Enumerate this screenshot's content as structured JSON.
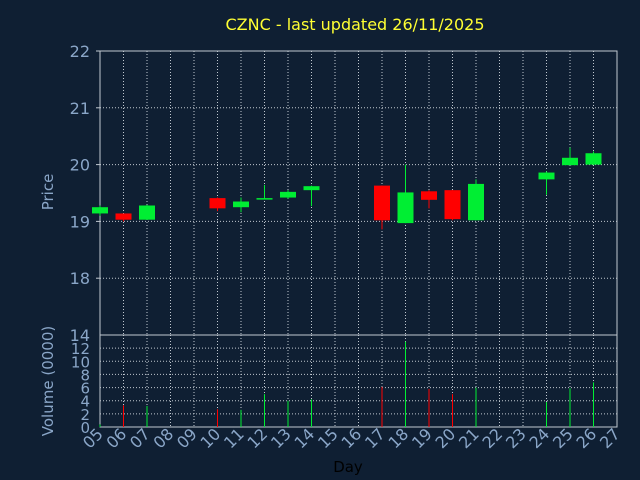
{
  "chart_data": [
    {
      "type": "candlestick",
      "title": "CZNC - last updated 26/11/2025",
      "ylabel": "Price",
      "ylim": [
        17,
        22
      ],
      "yticks": [
        "22",
        "21",
        "20",
        "19",
        "18"
      ],
      "grid": true,
      "x": [
        "05",
        "06",
        "07",
        "10",
        "11",
        "12",
        "13",
        "14",
        "17",
        "18",
        "19",
        "20",
        "21",
        "24",
        "25",
        "26"
      ],
      "open": [
        19.14,
        19.14,
        19.03,
        19.41,
        19.25,
        19.39,
        19.42,
        19.55,
        19.63,
        18.97,
        19.53,
        19.55,
        19.02,
        19.74,
        19.99,
        20.0
      ],
      "high": [
        19.28,
        19.14,
        19.29,
        19.42,
        19.42,
        19.64,
        19.55,
        19.63,
        19.63,
        20.0,
        19.55,
        19.55,
        19.74,
        19.88,
        20.3,
        20.23
      ],
      "low": [
        19.1,
        19.0,
        19.03,
        19.18,
        19.16,
        19.39,
        19.4,
        19.27,
        18.86,
        18.97,
        19.23,
        19.02,
        19.02,
        19.47,
        19.99,
        19.99
      ],
      "close": [
        19.25,
        19.03,
        19.28,
        19.23,
        19.35,
        19.41,
        19.52,
        19.62,
        19.02,
        19.51,
        19.38,
        19.04,
        19.66,
        19.86,
        20.12,
        20.2
      ]
    },
    {
      "type": "bar",
      "ylabel": "Volume (0000)",
      "ylim": [
        0,
        14
      ],
      "yticks": [
        "14",
        "12",
        "10",
        "8",
        "6",
        "4",
        "2",
        "0"
      ],
      "x": [
        "05",
        "06",
        "07",
        "10",
        "11",
        "12",
        "13",
        "14",
        "17",
        "18",
        "19",
        "20",
        "21",
        "24",
        "25",
        "26"
      ],
      "values": [
        0.4,
        3.3,
        3.2,
        2.7,
        2.6,
        5.0,
        4.0,
        4.2,
        6.1,
        13.0,
        5.8,
        5.0,
        6.0,
        3.8,
        5.9,
        6.8
      ],
      "xlabel": "Day",
      "xticks": [
        "05",
        "06",
        "07",
        "08",
        "09",
        "10",
        "11",
        "12",
        "13",
        "14",
        "15",
        "16",
        "17",
        "18",
        "19",
        "20",
        "21",
        "22",
        "23",
        "24",
        "25",
        "26",
        "27"
      ]
    }
  ],
  "colors": {
    "up": "#00ee33",
    "down": "#ff0000",
    "background": "#0f1f33",
    "title": "#ffff33",
    "axis_text": "#8aa6c8",
    "grid": "#c0c8d0"
  }
}
